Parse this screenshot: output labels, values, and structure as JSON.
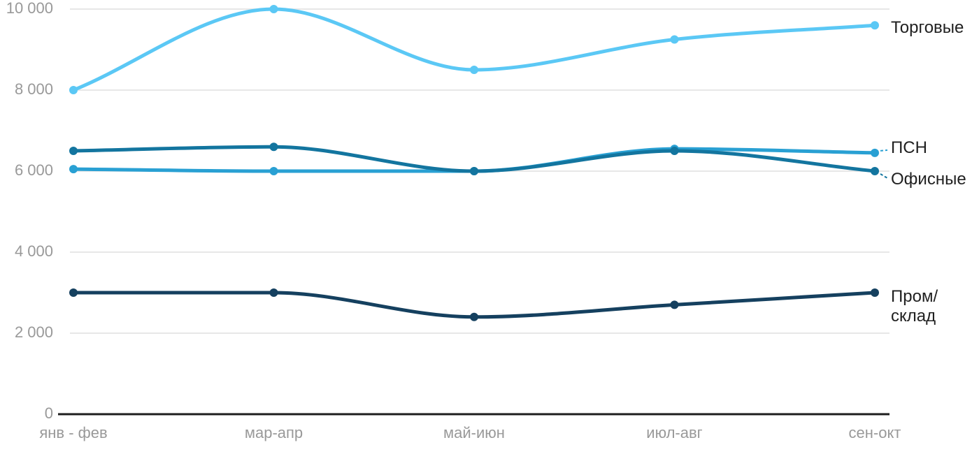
{
  "chart_data": {
    "type": "line",
    "title": "",
    "curve": "smooth",
    "categories": [
      "янв - фев",
      "мар-апр",
      "май-июн",
      "июл-авг",
      "сен-окт"
    ],
    "series": [
      {
        "key": "torgovye",
        "name": "Торговые",
        "label_lines": [
          "Торговые"
        ],
        "color": "#5BC8F5",
        "values": [
          8000,
          10000,
          8500,
          9250,
          9600
        ]
      },
      {
        "key": "psn",
        "name": "ПСН",
        "label_lines": [
          "ПСН"
        ],
        "color": "#29A0D3",
        "values": [
          6050,
          6000,
          6000,
          6550,
          6450
        ]
      },
      {
        "key": "ofisnye",
        "name": "Офисные",
        "label_lines": [
          "Офисные"
        ],
        "color": "#13759F",
        "values": [
          6500,
          6600,
          6000,
          6500,
          6000
        ]
      },
      {
        "key": "prom-sklad",
        "name": "Пром/склад",
        "label_lines": [
          "Пром/",
          "склад"
        ],
        "color": "#15405F",
        "values": [
          3000,
          3000,
          2400,
          2700,
          3000
        ]
      }
    ],
    "y_axis": {
      "range": [
        0,
        10000
      ],
      "ticks": [
        0,
        2000,
        4000,
        6000,
        8000,
        10000
      ],
      "tick_labels": [
        "0",
        "2 000",
        "4 000",
        "6 000",
        "8 000",
        "10 000"
      ],
      "grid": true
    },
    "x_axis": {
      "labels": [
        "янв - фев",
        "мар-апр",
        "май-июн",
        "июл-авг",
        "сен-окт"
      ]
    },
    "legend_position": "end-of-line",
    "colors": {
      "background": "#FFFFFF",
      "grid": "#E7E7E7",
      "axis_line": "#1E1E1E",
      "axis_text": "#999999",
      "series_label_text": "#212121"
    }
  }
}
